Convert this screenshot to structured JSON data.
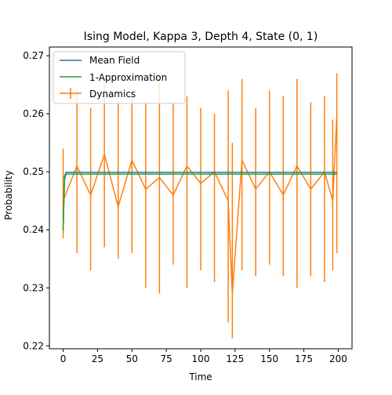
{
  "chart_data": {
    "type": "line",
    "title": "Ising Model, Kappa 3, Depth 4, State (0, 1)",
    "xlabel": "Time",
    "ylabel": "Probability",
    "xlim": [
      -10,
      210
    ],
    "ylim": [
      0.2195,
      0.2715
    ],
    "xticks": [
      0,
      25,
      50,
      75,
      100,
      125,
      150,
      175,
      200
    ],
    "yticks": [
      0.22,
      0.23,
      0.24,
      0.25,
      0.26,
      0.27
    ],
    "xtick_labels": [
      "0",
      "25",
      "50",
      "75",
      "100",
      "125",
      "150",
      "175",
      "200"
    ],
    "ytick_labels": [
      "0.22",
      "0.23",
      "0.24",
      "0.25",
      "0.26",
      "0.27"
    ],
    "grid": false,
    "legend_position": "top-left",
    "series": [
      {
        "name": "Mean Field",
        "color": "#1f77b4",
        "x": [
          0,
          1,
          2,
          199
        ],
        "y": [
          0.24,
          0.2492,
          0.2499,
          0.2499
        ]
      },
      {
        "name": "1-Approximation",
        "color": "#2ca02c",
        "x": [
          0,
          1,
          2,
          199
        ],
        "y": [
          0.2398,
          0.2485,
          0.2496,
          0.2496
        ]
      },
      {
        "name": "Dynamics",
        "color": "#ff7f0e",
        "x": [
          0,
          10,
          20,
          30,
          40,
          50,
          60,
          70,
          80,
          90,
          100,
          110,
          120,
          123,
          130,
          140,
          150,
          160,
          170,
          180,
          190,
          196,
          199
        ],
        "y": [
          0.245,
          0.251,
          0.246,
          0.253,
          0.244,
          0.252,
          0.247,
          0.249,
          0.246,
          0.251,
          0.248,
          0.25,
          0.245,
          0.229,
          0.252,
          0.247,
          0.25,
          0.246,
          0.251,
          0.247,
          0.25,
          0.245,
          0.26
        ],
        "error_low": [
          0.2385,
          0.236,
          0.233,
          0.237,
          0.235,
          0.236,
          0.23,
          0.229,
          0.234,
          0.23,
          0.233,
          0.231,
          0.224,
          0.2213,
          0.233,
          0.232,
          0.234,
          0.232,
          0.23,
          0.232,
          0.231,
          0.233,
          0.236
        ],
        "error_high": [
          0.254,
          0.264,
          0.261,
          0.265,
          0.262,
          0.264,
          0.262,
          0.266,
          0.262,
          0.263,
          0.261,
          0.26,
          0.264,
          0.255,
          0.266,
          0.261,
          0.264,
          0.263,
          0.266,
          0.262,
          0.263,
          0.259,
          0.267
        ]
      }
    ]
  }
}
